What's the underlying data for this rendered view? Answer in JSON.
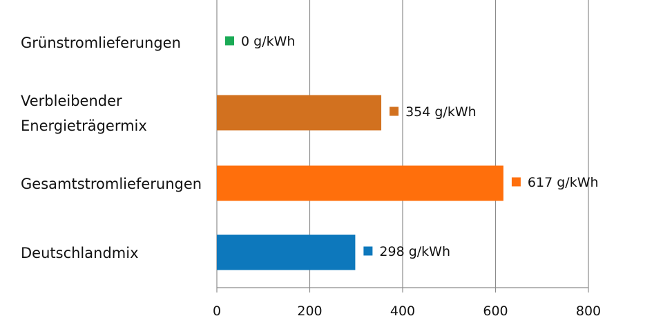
{
  "chart_data": {
    "type": "bar",
    "orientation": "horizontal",
    "categories": [
      [
        "Grünstromlieferungen"
      ],
      [
        "Verbleibender",
        "Energieträgermix"
      ],
      [
        "Gesamtstromlieferungen"
      ],
      [
        "Deutschlandmix"
      ]
    ],
    "values": [
      0,
      354,
      617,
      298
    ],
    "data_labels": [
      "0 g/kWh",
      "354 g/kWh",
      "617 g/kWh",
      "298 g/kWh"
    ],
    "colors": [
      "#1aaa55",
      "#d2711f",
      "#ff6f0c",
      "#0d78bc"
    ],
    "xlim": [
      0,
      800
    ],
    "xticks": [
      0,
      200,
      400,
      600,
      800
    ],
    "grid": true,
    "legend": "none",
    "title": "",
    "xlabel": "",
    "ylabel": ""
  }
}
